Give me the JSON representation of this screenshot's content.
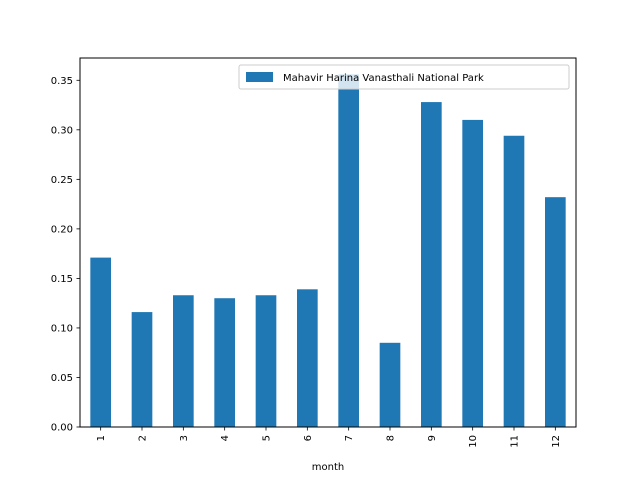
{
  "chart_data": {
    "type": "bar",
    "title": "",
    "xlabel": "month",
    "ylabel": "",
    "categories": [
      "1",
      "2",
      "3",
      "4",
      "5",
      "6",
      "7",
      "8",
      "9",
      "10",
      "11",
      "12"
    ],
    "series": [
      {
        "name": "Mahavir Harina Vanasthali National Park",
        "color": "#1f77b4",
        "values": [
          0.171,
          0.116,
          0.133,
          0.13,
          0.133,
          0.139,
          0.356,
          0.085,
          0.328,
          0.31,
          0.294,
          0.232
        ]
      }
    ],
    "ylim": [
      0,
      0.3725
    ],
    "yticks": [
      0.0,
      0.05,
      0.1,
      0.15,
      0.2,
      0.25,
      0.3,
      0.35
    ],
    "ytick_labels": [
      "0.00",
      "0.05",
      "0.10",
      "0.15",
      "0.20",
      "0.25",
      "0.30",
      "0.35"
    ],
    "grid": false,
    "legend_position": "top-right",
    "x_tick_rotation": "vertical"
  }
}
